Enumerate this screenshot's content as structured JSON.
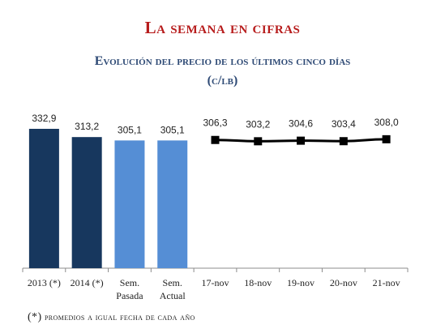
{
  "title": "La semana en cifras",
  "subtitle_line1": "Evolución del precio de los últimos cinco días",
  "subtitle_line2": "(c/lb)",
  "footnote_mark": "(*)",
  "footnote_text": "promedios a igual fecha de cada año",
  "chart_data": {
    "type": "bar+line",
    "title": "Evolución del precio de los últimos cinco días",
    "ylabel": "(c/lb)",
    "ylim": [
      0,
      340
    ],
    "grid": false,
    "legend": "none",
    "bars": [
      {
        "label": [
          "2013 (*)"
        ],
        "value": 332.9,
        "display": "332,9",
        "color": "#17375e"
      },
      {
        "label": [
          "2014 (*)"
        ],
        "value": 313.2,
        "display": "313,2",
        "color": "#17375e"
      },
      {
        "label": [
          "Sem.",
          "Pasada"
        ],
        "value": 305.1,
        "display": "305,1",
        "color": "#558ed5"
      },
      {
        "label": [
          "Sem.",
          "Actual"
        ],
        "value": 305.1,
        "display": "305,1",
        "color": "#558ed5"
      }
    ],
    "line": {
      "color": "#000000",
      "points": [
        {
          "label": "17-nov",
          "value": 306.3,
          "display": "306,3"
        },
        {
          "label": "18-nov",
          "value": 303.2,
          "display": "303,2"
        },
        {
          "label": "19-nov",
          "value": 304.6,
          "display": "304,6"
        },
        {
          "label": "20-nov",
          "value": 303.4,
          "display": "303,4"
        },
        {
          "label": "21-nov",
          "value": 308.0,
          "display": "308,0"
        }
      ]
    }
  }
}
